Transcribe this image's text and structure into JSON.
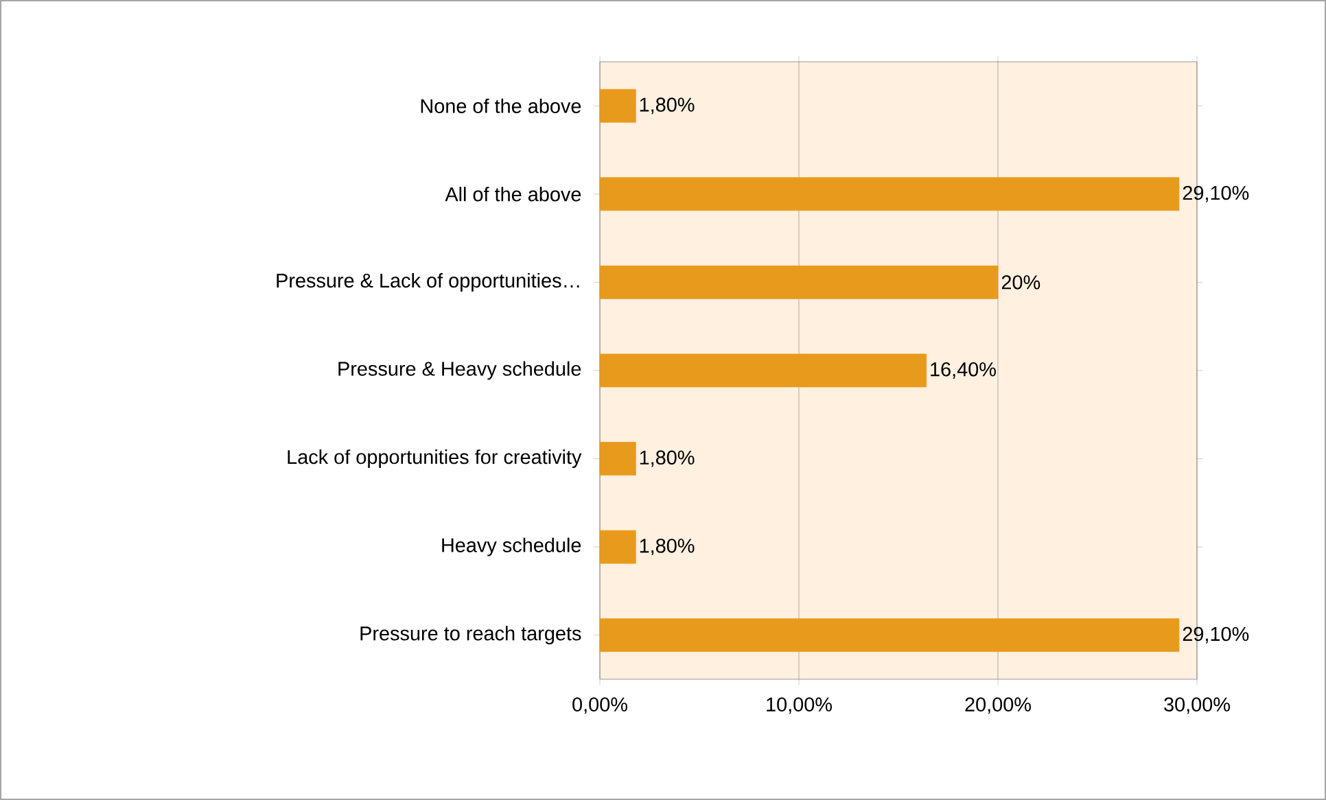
{
  "chart_data": {
    "type": "bar",
    "orientation": "horizontal",
    "categories": [
      "None of the above",
      "All of the above",
      "Pressure & Lack of opportunities…",
      "Pressure & Heavy schedule",
      "Lack of opportunities for creativity",
      "Heavy schedule",
      "Pressure to reach targets"
    ],
    "values": [
      1.8,
      29.1,
      20,
      16.4,
      1.8,
      1.8,
      29.1
    ],
    "value_labels": [
      "1,80%",
      "29,10%",
      "20%",
      "16,40%",
      "1,80%",
      "1,80%",
      "29,10%"
    ],
    "color": "#e89a1c",
    "xlim": [
      0,
      30
    ],
    "xticks": [
      {
        "value": 0,
        "label": "0,00%"
      },
      {
        "value": 10,
        "label": "10,00%"
      },
      {
        "value": 20,
        "label": "20,00%"
      },
      {
        "value": 30,
        "label": "30,00%"
      }
    ],
    "grid": "x"
  }
}
